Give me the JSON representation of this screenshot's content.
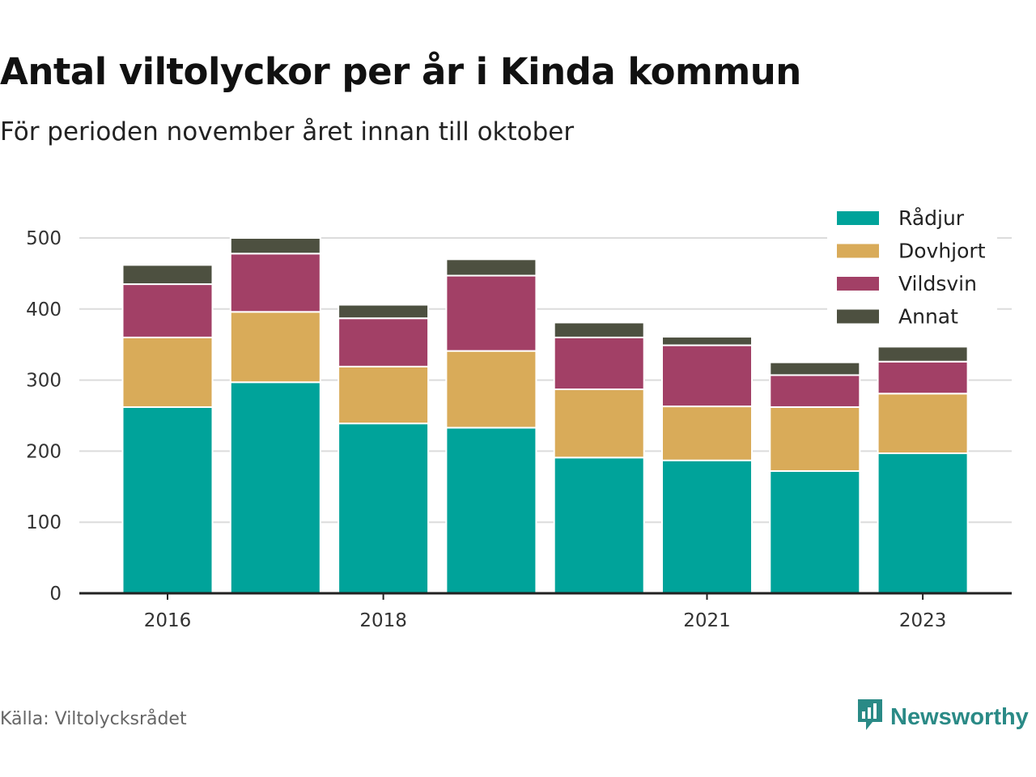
{
  "header": {
    "title": "Antal viltolyckor per år i Kinda kommun",
    "subtitle": "För perioden november året innan till oktober"
  },
  "footer": {
    "source": "Källa: Viltolycksrådet",
    "brand": "Newsworthy",
    "brand_icon": "newsworthy-logo-icon"
  },
  "colors": {
    "Rådjur": "#00a39a",
    "Dovhjort": "#d9ab59",
    "Vildsvin": "#a24066",
    "Annat": "#4d5040",
    "grid": "#dcdcdc",
    "axis": "#222222"
  },
  "chart_data": {
    "type": "bar",
    "stacked": true,
    "categories": [
      "2016",
      "2017",
      "2018",
      "2019",
      "2020",
      "2021",
      "2022",
      "2023"
    ],
    "x_tick_labels": [
      "2016",
      "",
      "2018",
      "",
      "",
      "2021",
      "",
      "2023"
    ],
    "series": [
      {
        "name": "Rådjur",
        "values": [
          262,
          297,
          239,
          233,
          191,
          187,
          172,
          197
        ]
      },
      {
        "name": "Dovhjort",
        "values": [
          98,
          99,
          80,
          108,
          96,
          76,
          90,
          84
        ]
      },
      {
        "name": "Vildsvin",
        "values": [
          75,
          82,
          68,
          106,
          73,
          86,
          45,
          45
        ]
      },
      {
        "name": "Annat",
        "values": [
          27,
          22,
          19,
          23,
          21,
          12,
          18,
          21
        ]
      }
    ],
    "ylim": [
      0,
      500
    ],
    "y_ticks": [
      0,
      100,
      200,
      300,
      400,
      500
    ],
    "grid": true,
    "legend_position": "top-right",
    "xlabel": "",
    "ylabel": ""
  }
}
